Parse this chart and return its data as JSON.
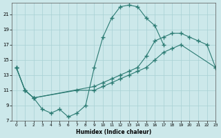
{
  "bg_color": "#cce8ea",
  "grid_color": "#a8d0d4",
  "line_color": "#2a7a72",
  "xlabel": "Humidex (Indice chaleur)",
  "xlim": [
    -0.5,
    23
  ],
  "ylim": [
    7,
    22.5
  ],
  "xtick_vals": [
    0,
    1,
    2,
    3,
    4,
    5,
    6,
    7,
    8,
    9,
    10,
    11,
    12,
    13,
    14,
    15,
    16,
    17,
    18,
    19,
    20,
    21,
    22,
    23
  ],
  "ytick_vals": [
    7,
    9,
    11,
    13,
    15,
    17,
    19,
    21
  ],
  "curve1_x": [
    0,
    1,
    2,
    3,
    4,
    5,
    6,
    7,
    8,
    9,
    10,
    11,
    12,
    13,
    14,
    15,
    16,
    17
  ],
  "curve1_y": [
    14,
    11,
    10,
    8.5,
    8.0,
    8.5,
    7.5,
    8.0,
    9.0,
    14.0,
    18.0,
    20.5,
    22.0,
    22.2,
    22.0,
    20.5,
    19.5,
    17.0
  ],
  "curve2_x": [
    0,
    1,
    2,
    7,
    9,
    10,
    11,
    12,
    13,
    14,
    15,
    16,
    17,
    18,
    19,
    23
  ],
  "curve2_y": [
    14,
    11,
    10,
    11,
    11.0,
    11.5,
    12.0,
    12.5,
    13.0,
    13.5,
    14.0,
    15.0,
    16.0,
    16.5,
    17.0,
    14.0
  ],
  "curve3_x": [
    0,
    1,
    2,
    9,
    10,
    11,
    12,
    13,
    14,
    15,
    16,
    17,
    18,
    19,
    20,
    21,
    22,
    23
  ],
  "curve3_y": [
    14,
    11,
    10,
    11.5,
    12.0,
    12.5,
    13.0,
    13.5,
    14.0,
    15.5,
    17.5,
    18.0,
    18.5,
    18.5,
    18.0,
    17.5,
    17.0,
    14.0
  ]
}
